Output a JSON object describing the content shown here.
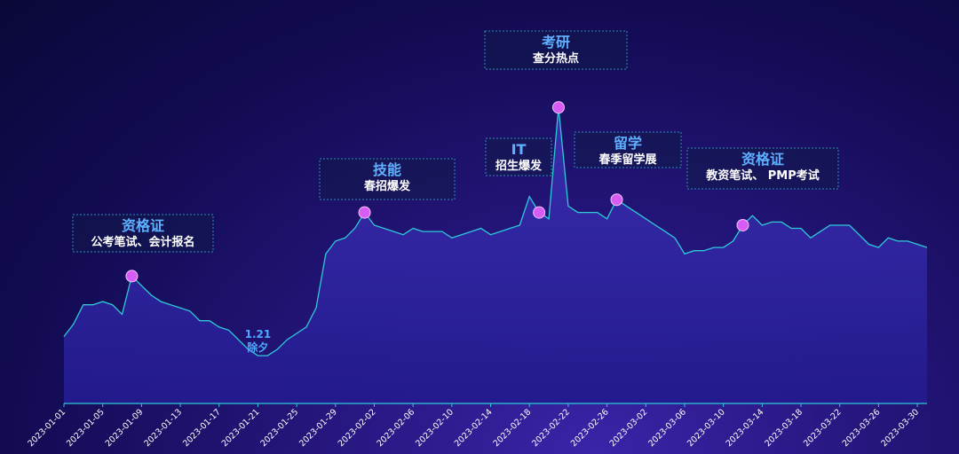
{
  "chart_data": {
    "type": "area",
    "x": [
      "2023-01-01",
      "2023-01-02",
      "2023-01-03",
      "2023-01-04",
      "2023-01-05",
      "2023-01-06",
      "2023-01-07",
      "2023-01-08",
      "2023-01-09",
      "2023-01-10",
      "2023-01-11",
      "2023-01-12",
      "2023-01-13",
      "2023-01-14",
      "2023-01-15",
      "2023-01-16",
      "2023-01-17",
      "2023-01-18",
      "2023-01-19",
      "2023-01-20",
      "2023-01-21",
      "2023-01-22",
      "2023-01-23",
      "2023-01-24",
      "2023-01-25",
      "2023-01-26",
      "2023-01-27",
      "2023-01-28",
      "2023-01-29",
      "2023-01-30",
      "2023-01-31",
      "2023-02-01",
      "2023-02-02",
      "2023-02-03",
      "2023-02-04",
      "2023-02-05",
      "2023-02-06",
      "2023-02-07",
      "2023-02-08",
      "2023-02-09",
      "2023-02-10",
      "2023-02-11",
      "2023-02-12",
      "2023-02-13",
      "2023-02-14",
      "2023-02-15",
      "2023-02-16",
      "2023-02-17",
      "2023-02-18",
      "2023-02-19",
      "2023-02-20",
      "2023-02-21",
      "2023-02-22",
      "2023-02-23",
      "2023-02-24",
      "2023-02-25",
      "2023-02-26",
      "2023-02-27",
      "2023-02-28",
      "2023-03-01",
      "2023-03-02",
      "2023-03-03",
      "2023-03-04",
      "2023-03-05",
      "2023-03-06",
      "2023-03-07",
      "2023-03-08",
      "2023-03-09",
      "2023-03-10",
      "2023-03-11",
      "2023-03-12",
      "2023-03-13",
      "2023-03-14",
      "2023-03-15",
      "2023-03-16",
      "2023-03-17",
      "2023-03-18",
      "2023-03-19",
      "2023-03-20",
      "2023-03-21",
      "2023-03-22",
      "2023-03-23",
      "2023-03-24",
      "2023-03-25",
      "2023-03-26",
      "2023-03-27",
      "2023-03-28",
      "2023-03-29",
      "2023-03-30",
      "2023-03-31"
    ],
    "values": [
      21,
      25,
      31,
      31,
      32,
      31,
      28,
      40,
      37,
      34,
      32,
      31,
      30,
      29,
      26,
      26,
      24,
      23,
      20,
      17,
      15,
      15,
      17,
      20,
      22,
      24,
      30,
      47,
      51,
      52,
      55,
      60,
      56,
      55,
      54,
      53,
      55,
      54,
      54,
      54,
      52,
      53,
      54,
      55,
      53,
      54,
      55,
      56,
      65,
      60,
      58,
      93,
      62,
      60,
      60,
      60,
      58,
      64,
      62,
      60,
      58,
      56,
      54,
      52,
      47,
      48,
      48,
      49,
      49,
      51,
      56,
      59,
      56,
      57,
      57,
      55,
      55,
      52,
      54,
      56,
      56,
      56,
      53,
      50,
      49,
      52,
      51,
      51,
      50,
      49
    ],
    "ylim": [
      0,
      100
    ],
    "xticks": [
      "2023-01-01",
      "2023-01-05",
      "2023-01-09",
      "2023-01-13",
      "2023-01-17",
      "2023-01-21",
      "2023-01-25",
      "2023-01-29",
      "2023-02-02",
      "2023-02-06",
      "2023-02-10",
      "2023-02-14",
      "2023-02-18",
      "2023-02-22",
      "2023-02-26",
      "2023-03-02",
      "2023-03-06",
      "2023-03-10",
      "2023-03-14",
      "2023-03-18",
      "2023-03-22",
      "2023-03-26",
      "2023-03-30"
    ],
    "annotations": [
      {
        "date": "2023-01-08",
        "title": "资格证",
        "sub": "公考笔试、会计报名",
        "boxed": true,
        "marker": true
      },
      {
        "date": "2023-01-21",
        "title": "1.21",
        "sub": "除夕",
        "boxed": false,
        "marker": false
      },
      {
        "date": "2023-02-01",
        "title": "技能",
        "sub": "春招爆发",
        "boxed": true,
        "marker": true
      },
      {
        "date": "2023-02-19",
        "title": "IT",
        "sub": "招生爆发",
        "boxed": true,
        "marker": true
      },
      {
        "date": "2023-02-21",
        "title": "考研",
        "sub": "查分热点",
        "boxed": true,
        "marker": true
      },
      {
        "date": "2023-02-27",
        "title": "留学",
        "sub": "春季留学展",
        "boxed": true,
        "marker": true
      },
      {
        "date": "2023-03-12",
        "title": "资格证",
        "sub": "教资笔试、 PMP考试",
        "boxed": true,
        "marker": true
      }
    ],
    "colors": {
      "line": "#2ec9d8",
      "fill_top": "#3a2fa8",
      "fill_bottom": "#1f1890",
      "marker": "#d65cf5",
      "box_border": "#2a8fb3",
      "box_fill": "#101a4a",
      "title": "#5fb0ff",
      "sub": "#ffffff"
    },
    "grid": false,
    "legend": "none"
  }
}
